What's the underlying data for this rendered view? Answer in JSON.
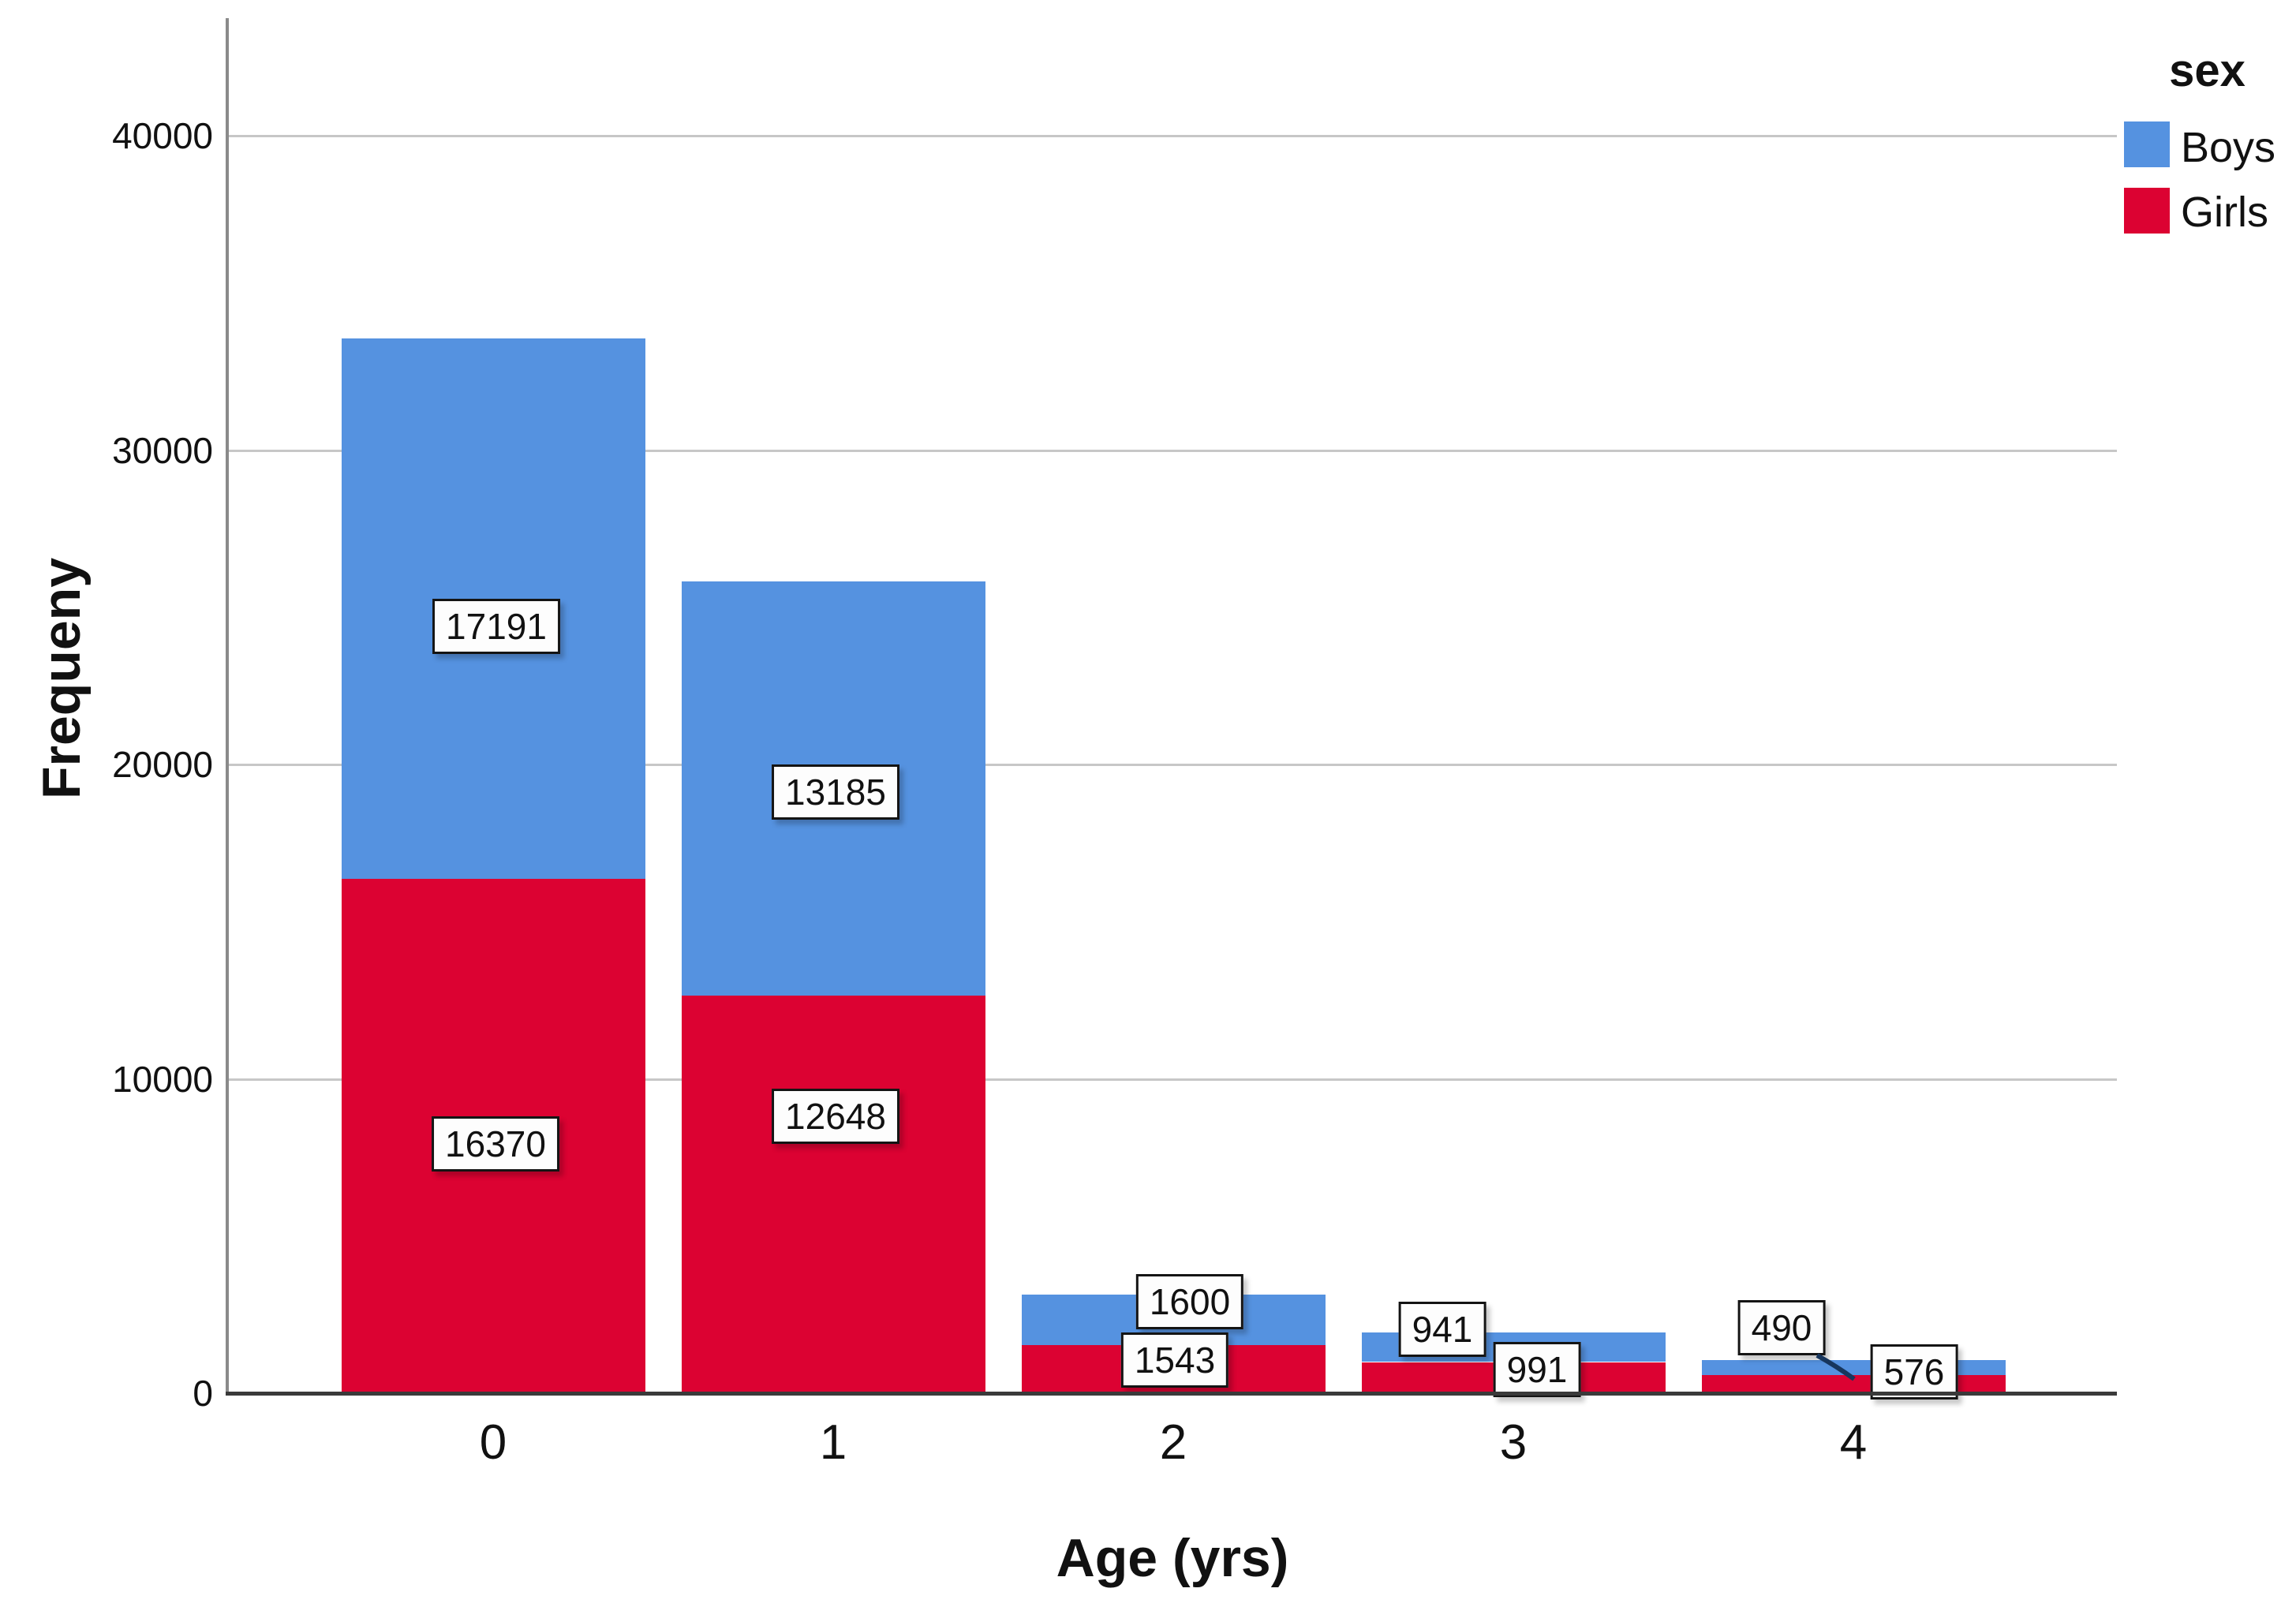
{
  "chart_data": {
    "type": "bar",
    "stacked": true,
    "categories": [
      "0",
      "1",
      "2",
      "3",
      "4"
    ],
    "series": [
      {
        "name": "Girls",
        "color": "#DC0232",
        "values": [
          16370,
          12648,
          1543,
          991,
          576
        ]
      },
      {
        "name": "Boys",
        "color": "#5592E0",
        "values": [
          17191,
          13185,
          1600,
          941,
          490
        ]
      }
    ],
    "xlabel": "Age (yrs)",
    "ylabel": "Frequeny",
    "legend_title": "sex",
    "legend_position": "top-right",
    "y_ticks": [
      0,
      10000,
      20000,
      30000,
      40000
    ],
    "y_tick_labels": [
      "0",
      "10000",
      "20000",
      "30000",
      "40000"
    ],
    "ylim": [
      0,
      43700
    ],
    "grid": true,
    "gridcolor": "#c7c7c7",
    "data_labels": {
      "Boys": [
        "17191",
        "13185",
        "1600",
        "941",
        "490"
      ],
      "Girls": [
        "16370",
        "12648",
        "1543",
        "991",
        "576"
      ]
    }
  },
  "axes": {
    "y_title": "Frequeny",
    "x_title": "Age (yrs)",
    "y_tick_labels": [
      "0",
      "10000",
      "20000",
      "30000",
      "40000"
    ],
    "x_tick_labels": [
      "0",
      "1",
      "2",
      "3",
      "4"
    ]
  },
  "legend": {
    "title": "sex",
    "items": [
      {
        "label": "Boys",
        "color": "#5592E0"
      },
      {
        "label": "Girls",
        "color": "#DC0232"
      }
    ]
  },
  "colors": {
    "boys_blue": "#5592E0",
    "girls_red": "#DC0232",
    "gridline": "#c7c7c7",
    "y_axis": "#8a8a8a",
    "x_axis": "#3a3a3a",
    "callout_line": "#17365d"
  }
}
